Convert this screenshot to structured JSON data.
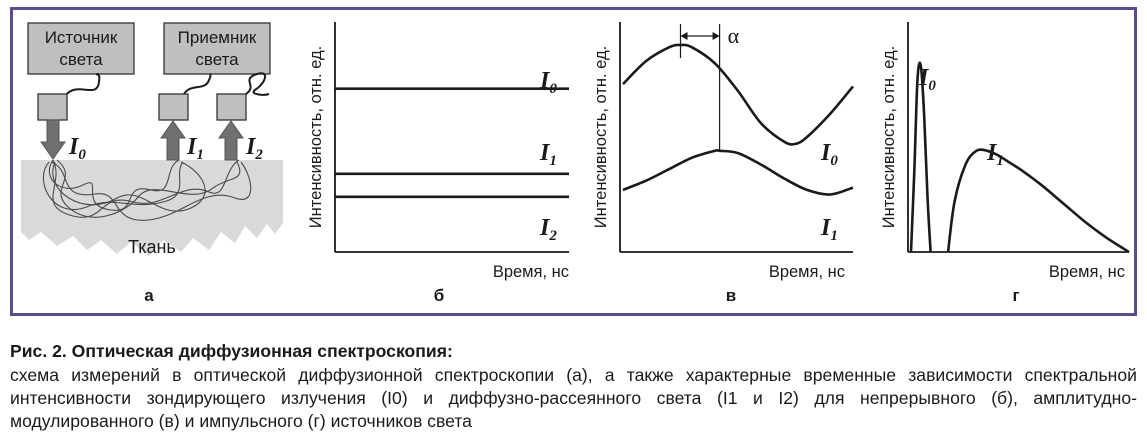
{
  "panels": {
    "a": {
      "letter": "а",
      "source_box": [
        "Источник",
        "света"
      ],
      "receiver_box": [
        "Приемник",
        "света"
      ],
      "tissue_label": "Ткань",
      "beam_labels": [
        {
          "base": "I",
          "sub": "0"
        },
        {
          "base": "I",
          "sub": "1"
        },
        {
          "base": "I",
          "sub": "2"
        }
      ]
    },
    "b": {
      "letter": "б",
      "ylabel": "Интенсивность, отн. ед.",
      "xlabel": "Время, нс"
    },
    "v": {
      "letter": "в",
      "ylabel": "Интенсивность, отн. ед.",
      "xlabel": "Время, нс",
      "phase_label": "α"
    },
    "g": {
      "letter": "г",
      "ylabel": "Интенсивность, отн. ед.",
      "xlabel": "Время, нс"
    }
  },
  "chart_data": [
    {
      "panel": "б",
      "type": "line",
      "title": "",
      "xlabel": "Время, нс",
      "ylabel": "Интенсивность, отн. ед.",
      "xlim": [
        0,
        1
      ],
      "ylim": [
        0,
        1
      ],
      "grid": false,
      "series": [
        {
          "name": "I0",
          "x": [
            0,
            1
          ],
          "y": [
            0.71,
            0.71
          ]
        },
        {
          "name": "I1",
          "x": [
            0,
            1
          ],
          "y": [
            0.34,
            0.34
          ]
        },
        {
          "name": "I2",
          "x": [
            0,
            1
          ],
          "y": [
            0.24,
            0.24
          ]
        }
      ]
    },
    {
      "panel": "в",
      "type": "line",
      "title": "",
      "xlabel": "Время, нс",
      "ylabel": "Интенсивность, отн. ед.",
      "xlim": [
        0,
        1
      ],
      "ylim": [
        0,
        1
      ],
      "grid": false,
      "series": [
        {
          "name": "I0",
          "x": [
            0,
            0.1,
            0.2,
            0.25,
            0.3,
            0.4,
            0.5,
            0.6,
            0.7,
            0.75,
            0.8,
            0.9,
            1.0
          ],
          "y": [
            0.73,
            0.83,
            0.89,
            0.9,
            0.89,
            0.82,
            0.7,
            0.56,
            0.48,
            0.47,
            0.5,
            0.6,
            0.72
          ]
        },
        {
          "name": "I1",
          "x": [
            0,
            0.1,
            0.2,
            0.3,
            0.4,
            0.42,
            0.5,
            0.6,
            0.7,
            0.8,
            0.9,
            1.0
          ],
          "y": [
            0.27,
            0.31,
            0.36,
            0.41,
            0.44,
            0.44,
            0.43,
            0.38,
            0.32,
            0.27,
            0.25,
            0.28
          ]
        }
      ],
      "annotations": [
        {
          "text": "α",
          "type": "phase-shift",
          "x_from": 0.25,
          "x_to": 0.42
        }
      ]
    },
    {
      "panel": "г",
      "type": "line",
      "title": "",
      "xlabel": "Время, нс",
      "ylabel": "Интенсивность, отн. ед.",
      "xlim": [
        0,
        1
      ],
      "ylim": [
        0,
        1
      ],
      "grid": false,
      "series": [
        {
          "name": "I0",
          "x": [
            0.0,
            0.015,
            0.03,
            0.045,
            0.06,
            0.075,
            0.09
          ],
          "y": [
            0.0,
            0.35,
            0.75,
            0.81,
            0.6,
            0.25,
            0.0
          ]
        },
        {
          "name": "I1",
          "x": [
            0.17,
            0.2,
            0.25,
            0.3,
            0.35,
            0.4,
            0.45,
            0.5,
            0.6,
            0.7,
            0.8,
            0.9,
            1.0
          ],
          "y": [
            0.0,
            0.22,
            0.38,
            0.44,
            0.44,
            0.42,
            0.39,
            0.36,
            0.29,
            0.21,
            0.13,
            0.06,
            0.0
          ]
        }
      ]
    }
  ],
  "caption": {
    "title": "Рис. 2. Оптическая диффузионная спектроскопия:",
    "body": "схема измерений в оптической диффузионной спектроскопии (а), а также характерные временные зависимости спектральной интенсивности зондирующего излучения (I0) и диффузно-рассеянного света (I1 и I2) для непрерывного (б), амплитудно-модулированного (в) и импульсного (г) источников света"
  }
}
